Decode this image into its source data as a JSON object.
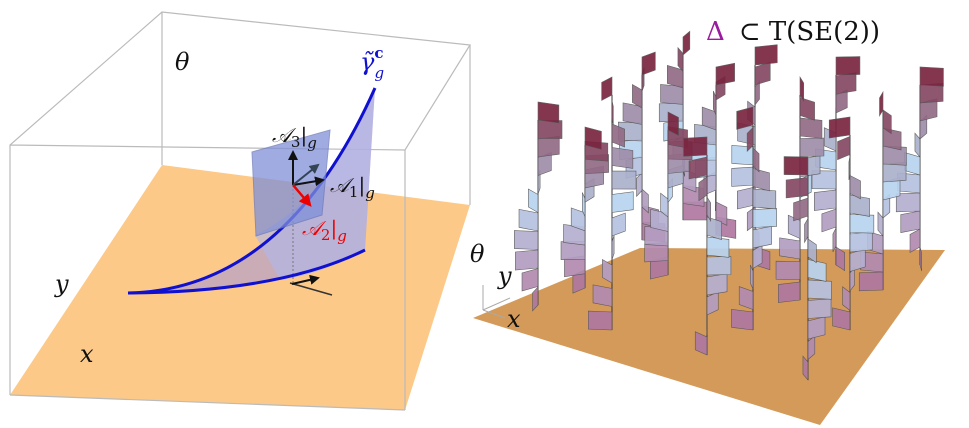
{
  "left_panel": {
    "theta_label": "θ",
    "curve_label": {
      "base": "γ̃",
      "sup": "c",
      "sub": "g"
    },
    "frame_labels": [
      {
        "base": "𝒜",
        "index": "3",
        "restrict": "|",
        "at": "g"
      },
      {
        "base": "𝒜",
        "index": "1",
        "restrict": "|",
        "at": "g"
      },
      {
        "base": "𝒜",
        "index": "2",
        "restrict": "|",
        "at": "g"
      }
    ],
    "y_label": "y",
    "x_label": "x"
  },
  "right_panel": {
    "title": {
      "symbol": "Δ",
      "rest": "⊂ T(SE(2))"
    },
    "theta_label": "θ",
    "y_label": "y",
    "x_label": "x"
  }
}
